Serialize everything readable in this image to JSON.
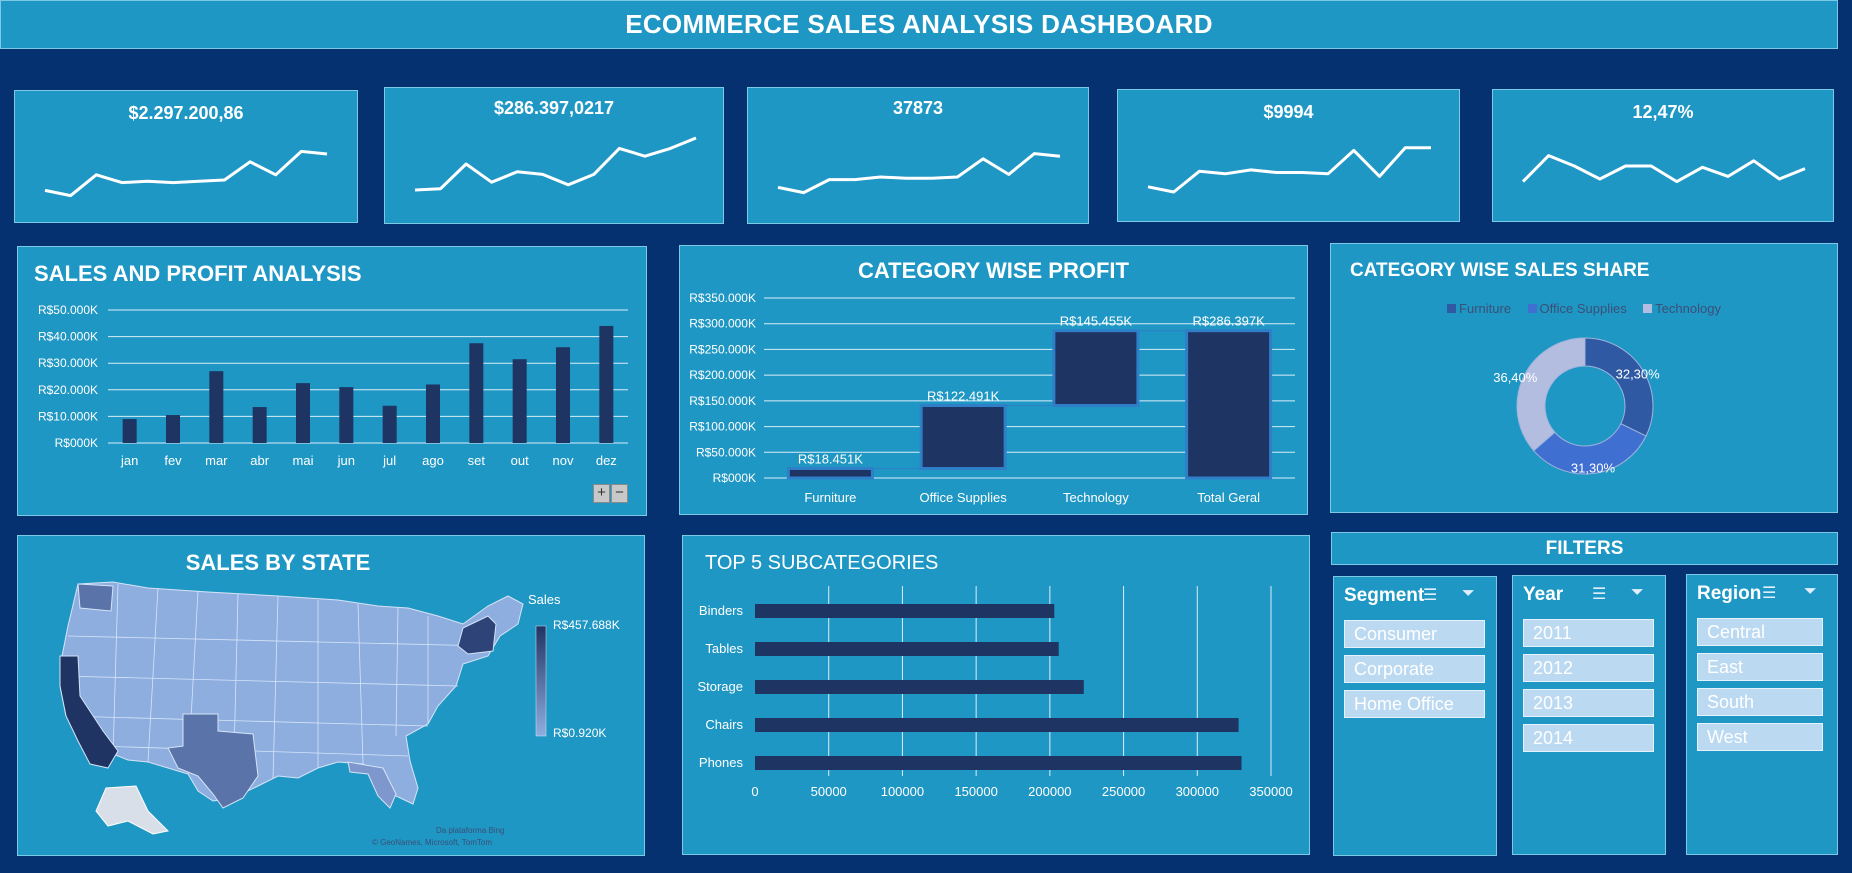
{
  "dashboard_title": "ECOMMERCE SALES ANALYSIS DASHBOARD",
  "kpis": [
    {
      "value": "$2.297.200,86",
      "trend": [
        6,
        4,
        12,
        9,
        9.5,
        9,
        9.5,
        10,
        17,
        12,
        21,
        20
      ]
    },
    {
      "value": "$286.397,0217",
      "trend": [
        5,
        5.5,
        15,
        8,
        12,
        11,
        7,
        11,
        21,
        18,
        21,
        25
      ]
    },
    {
      "value": "37873",
      "trend": [
        6,
        4,
        9,
        9,
        10,
        9.5,
        9.5,
        10,
        17,
        11,
        19,
        18
      ]
    },
    {
      "value": "$9994",
      "trend": [
        7,
        5,
        13,
        12,
        13.5,
        12.5,
        12.5,
        12,
        21,
        11,
        22,
        22
      ]
    },
    {
      "value": "12,47%",
      "trend": [
        9,
        19,
        15,
        10,
        15,
        15,
        9,
        14.5,
        11,
        17,
        10,
        14
      ]
    }
  ],
  "sales_profit": {
    "title": "SALES AND PROFIT ANALYSIS",
    "zoom_in": "+",
    "zoom_out": "−"
  },
  "category_profit": {
    "title": "CATEGORY WISE PROFIT"
  },
  "sales_share": {
    "title": "CATEGORY WISE SALES SHARE"
  },
  "sales_by_state": {
    "title": "SALES BY STATE",
    "legend_title": "Sales",
    "legend_max": "R$457.688K",
    "legend_min": "R$0.920K",
    "attribution_1": "Da plataforma Bing",
    "attribution_2": "© GeoNames, Microsoft, TomTom"
  },
  "top_subcategories": {
    "title": "TOP 5 SUBCATEGORIES"
  },
  "filters": {
    "title": "FILTERS",
    "segment": {
      "label": "Segment",
      "items": [
        "Consumer",
        "Corporate",
        "Home Office"
      ]
    },
    "year": {
      "label": "Year",
      "items": [
        "2011",
        "2012",
        "2013",
        "2014"
      ]
    },
    "region": {
      "label": "Region",
      "items": [
        "Central",
        "East",
        "South",
        "West"
      ]
    }
  },
  "colors": {
    "background": "#053170",
    "panel": "#1f97c4",
    "bar": "#1e3462",
    "furniture": "#2f5aa3",
    "office_supplies": "#3f6fd0",
    "technology": "#b3bde0"
  },
  "chart_data": [
    {
      "type": "bar",
      "title": "SALES AND PROFIT ANALYSIS",
      "categories": [
        "jan",
        "fev",
        "mar",
        "abr",
        "mai",
        "jun",
        "jul",
        "ago",
        "set",
        "out",
        "nov",
        "dez"
      ],
      "values": [
        9000,
        10500,
        27000,
        13500,
        22500,
        21000,
        14000,
        22000,
        37500,
        31500,
        36000,
        44000
      ],
      "ylim": [
        0,
        50000
      ],
      "yticks": [
        "R$000K",
        "R$10.000K",
        "R$20.000K",
        "R$30.000K",
        "R$40.000K",
        "R$50.000K"
      ],
      "grid": true
    },
    {
      "type": "bar",
      "subtype": "waterfall",
      "title": "CATEGORY WISE PROFIT",
      "categories": [
        "Furniture",
        "Office Supplies",
        "Technology",
        "Total Geral"
      ],
      "values": [
        18451,
        122491,
        145455,
        286397
      ],
      "data_labels": [
        "R$18.451K",
        "R$122.491K",
        "R$145.455K",
        "R$286.397K"
      ],
      "ylim": [
        0,
        350000
      ],
      "yticks": [
        "R$000K",
        "R$50.000K",
        "R$100.000K",
        "R$150.000K",
        "R$200.000K",
        "R$250.000K",
        "R$300.000K",
        "R$350.000K"
      ],
      "grid": true
    },
    {
      "type": "pie",
      "subtype": "donut",
      "title": "CATEGORY WISE SALES SHARE",
      "categories": [
        "Furniture",
        "Office Supplies",
        "Technology"
      ],
      "values": [
        32.3,
        31.3,
        36.4
      ],
      "data_labels": [
        "32,30%",
        "31,30%",
        "36,40%"
      ],
      "legend": "top"
    },
    {
      "type": "bar",
      "orientation": "horizontal",
      "title": "TOP 5 SUBCATEGORIES",
      "categories": [
        "Binders",
        "Tables",
        "Storage",
        "Chairs",
        "Phones"
      ],
      "values": [
        203000,
        206000,
        223000,
        328000,
        330000
      ],
      "xlim": [
        0,
        350000
      ],
      "xticks": [
        "0",
        "50000",
        "100000",
        "150000",
        "200000",
        "250000",
        "300000",
        "350000"
      ],
      "grid": true
    }
  ]
}
